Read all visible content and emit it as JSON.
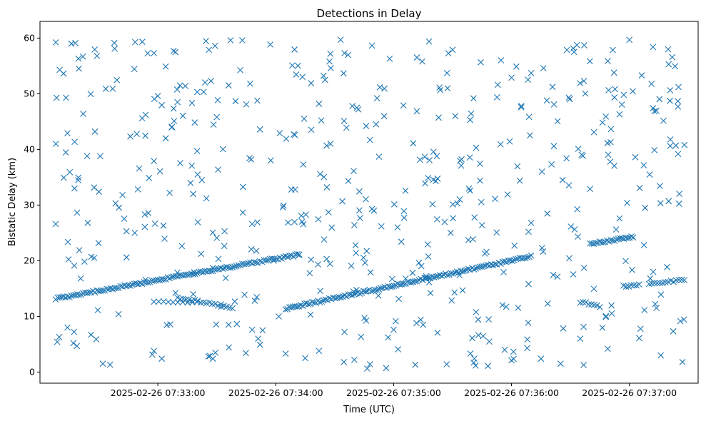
{
  "chart_data": {
    "type": "scatter",
    "title": "Detections in Delay",
    "xlabel": "Time (UTC)",
    "ylabel": "Bistatic Delay (km)",
    "x_start": "2025-02-26 07:32:00",
    "x_end": "2025-02-26 07:37:35",
    "x_ticks": [
      {
        "time": "2025-02-26 07:33:00",
        "label": "2025-02-26 07:33:00"
      },
      {
        "time": "2025-02-26 07:34:00",
        "label": "2025-02-26 07:34:00"
      },
      {
        "time": "2025-02-26 07:35:00",
        "label": "2025-02-26 07:35:00"
      },
      {
        "time": "2025-02-26 07:36:00",
        "label": "2025-02-26 07:36:00"
      },
      {
        "time": "2025-02-26 07:37:00",
        "label": "2025-02-26 07:37:00"
      }
    ],
    "ylim": [
      -2,
      63
    ],
    "y_ticks": [
      0,
      10,
      20,
      30,
      40,
      50,
      60
    ],
    "grid": false,
    "marker": "x",
    "color": "#1f77b4",
    "series": [
      {
        "name": "",
        "points": [
          [
            "2025-02-26 07:32:10",
            54.3
          ],
          [
            "2025-02-26 07:32:16",
            59.0
          ],
          [
            "2025-02-26 07:32:18",
            59.1
          ],
          [
            "2025-02-26 07:32:29",
            56.8
          ],
          [
            "2025-02-26 07:32:38",
            58.1
          ],
          [
            "2025-02-26 07:32:58",
            57.3
          ],
          [
            "2025-02-26 07:33:08",
            57.7
          ],
          [
            "2025-02-26 07:33:37",
            59.6
          ],
          [
            "2025-02-26 07:33:43",
            59.6
          ],
          [
            "2025-02-26 07:34:33",
            59.7
          ],
          [
            "2025-02-26 07:34:35",
            57.3
          ],
          [
            "2025-02-26 07:35:18",
            59.4
          ],
          [
            "2025-02-26 07:36:37",
            58.7
          ],
          [
            "2025-02-26 07:37:00",
            59.7
          ],
          [
            "2025-02-26 07:37:12",
            58.4
          ],
          [
            "2025-02-26 07:32:14",
            42.9
          ],
          [
            "2025-02-26 07:32:22",
            46.4
          ],
          [
            "2025-02-26 07:32:24",
            38.8
          ],
          [
            "2025-02-26 07:32:28",
            43.2
          ],
          [
            "2025-02-26 07:32:37",
            50.9
          ],
          [
            "2025-02-26 07:32:42",
            31.8
          ],
          [
            "2025-02-26 07:32:52",
            45.6
          ],
          [
            "2025-02-26 07:33:00",
            49.6
          ],
          [
            "2025-02-26 07:33:04",
            42.0
          ],
          [
            "2025-02-26 07:33:10",
            48.5
          ],
          [
            "2025-02-26 07:33:14",
            51.4
          ],
          [
            "2025-02-26 07:33:20",
            39.7
          ],
          [
            "2025-02-26 07:33:26",
            57.9
          ],
          [
            "2025-02-26 07:33:30",
            45.8
          ],
          [
            "2025-02-26 07:33:36",
            51.5
          ],
          [
            "2025-02-26 07:33:45",
            48.1
          ],
          [
            "2025-02-26 07:33:52",
            43.6
          ],
          [
            "2025-02-26 07:34:02",
            42.9
          ],
          [
            "2025-02-26 07:34:08",
            32.8
          ],
          [
            "2025-02-26 07:34:14",
            37.3
          ],
          [
            "2025-02-26 07:34:18",
            51.9
          ],
          [
            "2025-02-26 07:34:22",
            48.2
          ],
          [
            "2025-02-26 07:34:28",
            54.6
          ],
          [
            "2025-02-26 07:34:36",
            43.9
          ],
          [
            "2025-02-26 07:34:42",
            47.2
          ],
          [
            "2025-02-26 07:34:48",
            41.7
          ],
          [
            "2025-02-26 07:34:58",
            56.3
          ],
          [
            "2025-02-26 07:35:05",
            47.9
          ],
          [
            "2025-02-26 07:35:10",
            41.1
          ],
          [
            "2025-02-26 07:35:22",
            38.8
          ],
          [
            "2025-02-26 07:35:30",
            57.9
          ],
          [
            "2025-02-26 07:35:42",
            40.3
          ],
          [
            "2025-02-26 07:35:53",
            51.6
          ],
          [
            "2025-02-26 07:36:00",
            52.9
          ],
          [
            "2025-02-26 07:36:05",
            47.8
          ],
          [
            "2025-02-26 07:36:10",
            53.7
          ],
          [
            "2025-02-26 07:36:18",
            48.8
          ],
          [
            "2025-02-26 07:36:28",
            38.4
          ],
          [
            "2025-02-26 07:36:34",
            40.1
          ],
          [
            "2025-02-26 07:36:42",
            43.1
          ],
          [
            "2025-02-26 07:36:48",
            45.9
          ],
          [
            "2025-02-26 07:36:55",
            46.3
          ],
          [
            "2025-02-26 07:37:03",
            38.6
          ],
          [
            "2025-02-26 07:37:12",
            47.4
          ],
          [
            "2025-02-26 07:37:20",
            55.3
          ],
          [
            "2025-02-26 07:37:25",
            51.2
          ],
          [
            "2025-02-26 07:37:28",
            40.8
          ],
          [
            "2025-02-26 07:32:08",
            26.6
          ],
          [
            "2025-02-26 07:32:20",
            21.9
          ],
          [
            "2025-02-26 07:32:30",
            32.4
          ],
          [
            "2025-02-26 07:32:44",
            25.3
          ],
          [
            "2025-02-26 07:32:58",
            37.9
          ],
          [
            "2025-02-26 07:33:06",
            32.2
          ],
          [
            "2025-02-26 07:33:18",
            32.0
          ],
          [
            "2025-02-26 07:33:30",
            24.1
          ],
          [
            "2025-02-26 07:33:48",
            26.6
          ],
          [
            "2025-02-26 07:34:04",
            29.9
          ],
          [
            "2025-02-26 07:34:13",
            28.1
          ],
          [
            "2025-02-26 07:34:26",
            33.2
          ],
          [
            "2025-02-26 07:34:40",
            26.4
          ],
          [
            "2025-02-26 07:34:50",
            29.0
          ],
          [
            "2025-02-26 07:35:02",
            26.0
          ],
          [
            "2025-02-26 07:35:16",
            33.9
          ],
          [
            "2025-02-26 07:35:29",
            25.0
          ],
          [
            "2025-02-26 07:35:44",
            34.4
          ],
          [
            "2025-02-26 07:35:58",
            31.9
          ],
          [
            "2025-02-26 07:36:10",
            26.8
          ],
          [
            "2025-02-26 07:36:26",
            34.5
          ],
          [
            "2025-02-26 07:36:40",
            32.9
          ],
          [
            "2025-02-26 07:36:55",
            27.6
          ],
          [
            "2025-02-26 07:37:08",
            29.5
          ],
          [
            "2025-02-26 07:37:20",
            30.7
          ],
          [
            "2025-02-26 07:32:14",
            8.0
          ],
          [
            "2025-02-26 07:32:17",
            5.2
          ],
          [
            "2025-02-26 07:32:26",
            6.7
          ],
          [
            "2025-02-26 07:32:32",
            1.5
          ],
          [
            "2025-02-26 07:32:40",
            10.4
          ],
          [
            "2025-02-26 07:32:58",
            3.8
          ],
          [
            "2025-02-26 07:33:02",
            2.4
          ],
          [
            "2025-02-26 07:33:28",
            2.4
          ],
          [
            "2025-02-26 07:33:36",
            8.5
          ],
          [
            "2025-02-26 07:33:48",
            7.6
          ],
          [
            "2025-02-26 07:34:05",
            3.3
          ],
          [
            "2025-02-26 07:34:15",
            2.5
          ],
          [
            "2025-02-26 07:34:22",
            3.8
          ],
          [
            "2025-02-26 07:34:35",
            7.2
          ],
          [
            "2025-02-26 07:34:40",
            2.2
          ],
          [
            "2025-02-26 07:34:48",
            1.4
          ],
          [
            "2025-02-26 07:35:00",
            7.6
          ],
          [
            "2025-02-26 07:35:15",
            8.5
          ],
          [
            "2025-02-26 07:35:27",
            1.4
          ],
          [
            "2025-02-26 07:35:40",
            6.1
          ],
          [
            "2025-02-26 07:35:48",
            1.1
          ],
          [
            "2025-02-26 07:36:00",
            2.1
          ],
          [
            "2025-02-26 07:36:08",
            4.3
          ],
          [
            "2025-02-26 07:36:15",
            2.4
          ],
          [
            "2025-02-26 07:36:25",
            1.5
          ],
          [
            "2025-02-26 07:36:35",
            6.0
          ],
          [
            "2025-02-26 07:36:48",
            9.9
          ],
          [
            "2025-02-26 07:37:05",
            6.1
          ],
          [
            "2025-02-26 07:37:16",
            3.0
          ],
          [
            "2025-02-26 07:37:27",
            1.8
          ]
        ],
        "tracks": [
          {
            "start": [
              "2025-02-26 07:32:08",
              13.2
            ],
            "end": [
              "2025-02-26 07:34:12",
              21.1
            ],
            "count": 125
          },
          {
            "start": [
              "2025-02-26 07:32:58",
              12.6
            ],
            "end": [
              "2025-02-26 07:33:20",
              12.5
            ],
            "count": 10
          },
          {
            "start": [
              "2025-02-26 07:33:10",
              13.3
            ],
            "end": [
              "2025-02-26 07:33:38",
              11.6
            ],
            "count": 20
          },
          {
            "start": [
              "2025-02-26 07:34:05",
              11.4
            ],
            "end": [
              "2025-02-26 07:36:10",
              20.8
            ],
            "count": 130
          },
          {
            "start": [
              "2025-02-26 07:36:35",
              12.6
            ],
            "end": [
              "2025-02-26 07:36:45",
              11.8
            ],
            "count": 8
          },
          {
            "start": [
              "2025-02-26 07:36:40",
              23.0
            ],
            "end": [
              "2025-02-26 07:37:02",
              24.3
            ],
            "count": 24
          },
          {
            "start": [
              "2025-02-26 07:36:57",
              15.5
            ],
            "end": [
              "2025-02-26 07:37:05",
              15.6
            ],
            "count": 7
          },
          {
            "start": [
              "2025-02-26 07:37:10",
              15.8
            ],
            "end": [
              "2025-02-26 07:37:28",
              16.6
            ],
            "count": 14
          }
        ],
        "noise": {
          "count": 420,
          "ymin": 0.5,
          "ymax": 59.5,
          "seed": 987
        }
      }
    ]
  }
}
